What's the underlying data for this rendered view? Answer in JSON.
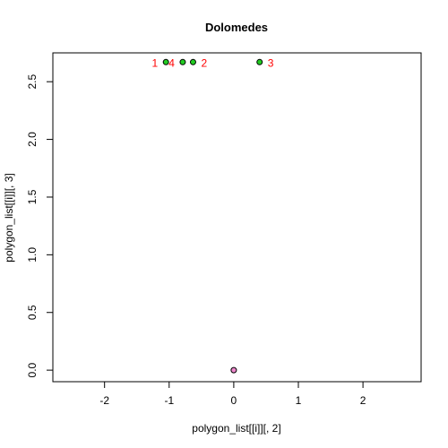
{
  "chart_data": {
    "type": "scatter",
    "title": "Dolomedes",
    "xlabel": "polygon_list[[i]][, 2]",
    "ylabel": "polygon_list[[i]][, 3]",
    "xlim": [
      -2.8,
      2.9
    ],
    "ylim": [
      -0.1,
      2.75
    ],
    "x_ticks": [
      -2,
      -1,
      0,
      1,
      2
    ],
    "x_tick_labels": [
      "-2",
      "-1",
      "0",
      "1",
      "2"
    ],
    "y_ticks": [
      0.0,
      0.5,
      1.0,
      1.5,
      2.0,
      2.5
    ],
    "y_tick_labels": [
      "0.0",
      "0.5",
      "1.0",
      "1.5",
      "2.0",
      "2.5"
    ],
    "grid": false,
    "series": [
      {
        "points": [
          {
            "x": -1.05,
            "y": 2.67,
            "label": "1",
            "label_side": "left"
          },
          {
            "x": -0.63,
            "y": 2.67,
            "label": "2",
            "label_side": "right"
          },
          {
            "x": 0.4,
            "y": 2.67,
            "label": "3",
            "label_side": "right"
          },
          {
            "x": -0.79,
            "y": 2.67,
            "label": "4",
            "label_side": "left"
          }
        ],
        "color": "#22cc22",
        "label_color": "#ff0000"
      },
      {
        "points": [
          {
            "x": 0.0,
            "y": 0.0,
            "label": ""
          }
        ],
        "color": "#ee88cc"
      }
    ]
  }
}
